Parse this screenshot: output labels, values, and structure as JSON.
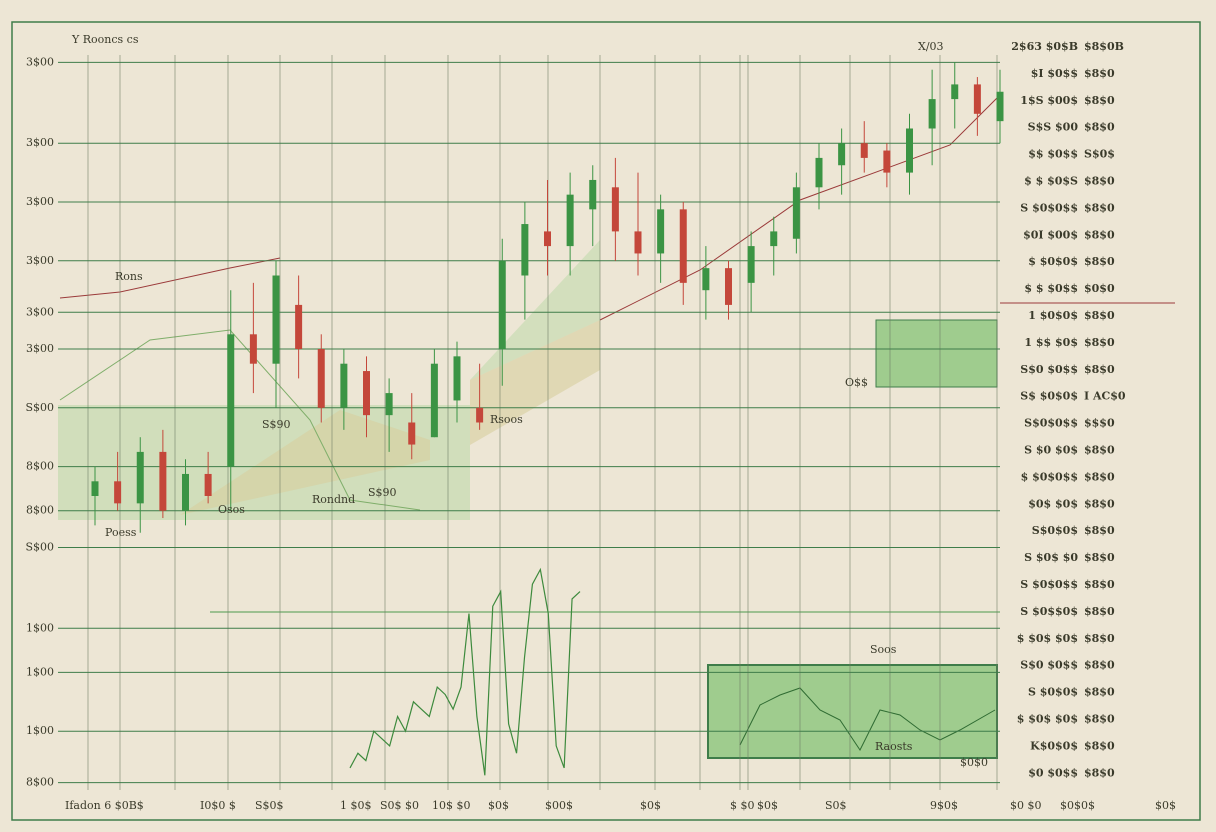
{
  "chart_data": {
    "type": "candlestick",
    "title": "Y Rooncs cs",
    "categories": [
      null,
      null,
      null,
      null,
      null,
      null,
      null,
      null,
      null,
      null,
      null,
      null,
      null,
      null,
      null,
      null,
      null,
      null,
      null,
      null,
      null,
      null,
      null,
      null,
      null,
      null,
      null,
      null,
      null,
      null,
      null,
      null,
      null,
      null,
      null,
      null,
      null,
      null,
      null,
      null,
      null
    ],
    "open": [
      40,
      42,
      39,
      46,
      38,
      43,
      44,
      62,
      58,
      66,
      60,
      52,
      57,
      51,
      50,
      48,
      53,
      52,
      60,
      70,
      76,
      74,
      79,
      82,
      76,
      73,
      79,
      68,
      71,
      69,
      74,
      75,
      82,
      85,
      88,
      87,
      84,
      90,
      94,
      96,
      91
    ],
    "high": [
      44,
      46,
      48,
      49,
      45,
      46,
      68,
      69,
      72,
      70,
      62,
      60,
      59,
      56,
      54,
      60,
      61,
      58,
      75,
      80,
      83,
      84,
      85,
      86,
      84,
      81,
      80,
      74,
      72,
      76,
      78,
      84,
      88,
      90,
      91,
      88,
      92,
      98,
      99,
      97,
      98
    ],
    "low": [
      36,
      38,
      35,
      37,
      36,
      39,
      38,
      54,
      52,
      56,
      50,
      49,
      48,
      46,
      45,
      48,
      50,
      49,
      55,
      64,
      70,
      70,
      74,
      72,
      70,
      69,
      66,
      64,
      64,
      65,
      70,
      73,
      79,
      81,
      84,
      82,
      81,
      85,
      90,
      89,
      88
    ],
    "close": [
      42,
      39,
      46,
      38,
      43,
      40,
      62,
      58,
      70,
      60,
      52,
      58,
      51,
      54,
      47,
      58,
      59,
      50,
      72,
      77,
      74,
      81,
      83,
      76,
      73,
      79,
      69,
      71,
      66,
      74,
      76,
      82,
      86,
      88,
      86,
      84,
      90,
      94,
      96,
      92,
      95
    ],
    "up_color": "#3b9444",
    "down_color": "#c4473a",
    "ylim": [
      0,
      100
    ],
    "yticks": [
      {
        "value": 99,
        "label": "3$00"
      },
      {
        "value": 88,
        "label": "3$00"
      },
      {
        "value": 80,
        "label": "3$00"
      },
      {
        "value": 72,
        "label": "3$00"
      },
      {
        "value": 65,
        "label": "3$00"
      },
      {
        "value": 60,
        "label": "3$00"
      },
      {
        "value": 52,
        "label": "S$00"
      },
      {
        "value": 44,
        "label": "8$00"
      },
      {
        "value": 38,
        "label": "8$00"
      },
      {
        "value": 33,
        "label": "S$00"
      },
      {
        "value": 22,
        "label": "1$00"
      },
      {
        "value": 16,
        "label": "1$00"
      },
      {
        "value": 8,
        "label": "1$00"
      },
      {
        "value": 1,
        "label": "8$00"
      }
    ],
    "grid": true,
    "lower": {
      "type": "line",
      "color": "#3d8a3d",
      "values": [
        3,
        5,
        4,
        8,
        7,
        6,
        10,
        8,
        12,
        11,
        10,
        14,
        13,
        11,
        14,
        24,
        10,
        2,
        25,
        27,
        9,
        5,
        18,
        28,
        30,
        24,
        6,
        3,
        26,
        27
      ]
    },
    "annotations": [
      "X/03",
      "Rons",
      "Rsoos",
      "S$90",
      "Rondnd",
      "Poess",
      "Osos",
      "S$90",
      "Raosts",
      "Soos",
      "O$$",
      "$0$0"
    ],
    "x_labels": [
      "Ifadon 6 $0B$",
      "I0$0 $",
      "S$0$",
      "1 $0$",
      "S0$ $0",
      "10$ $0",
      "$0$",
      "$00$",
      "$0$",
      "$ $0",
      "$0$",
      "S0$",
      "9$0$",
      "$0 $0",
      "$0$0$",
      "$0$"
    ],
    "right_labels": [
      {
        "left": "2$63 $0$B",
        "right": "$8$0B",
        "color": "#3b9444"
      },
      {
        "left": "$I $0$$",
        "right": "$8$0",
        "color": "#3b9444"
      },
      {
        "left": "1$S $00$",
        "right": "$8$0",
        "color": "#3b9444"
      },
      {
        "left": "S$S $00",
        "right": "$8$0",
        "color": "#3b9444"
      },
      {
        "left": "$$ $0$$",
        "right": "S$0$",
        "color": "#3b9444"
      },
      {
        "left": "$ $ $0$S",
        "right": "$8$0",
        "color": "#3b9444"
      },
      {
        "left": "S $0$0$$",
        "right": "$8$0",
        "color": "#c4473a"
      },
      {
        "left": "$0I $00$",
        "right": "$8$0",
        "color": "#3b9444"
      },
      {
        "left": "$ $0$0$",
        "right": "$8$0",
        "color": "#3b9444"
      },
      {
        "left": "$ $ $0$$",
        "right": "$0$0",
        "color": "#3b9444"
      },
      {
        "left": "1 $0$0$",
        "right": "$8$0",
        "color": "#3b9444"
      },
      {
        "left": "1 $$ $0$",
        "right": "$8$0",
        "color": "#c4473a"
      },
      {
        "left": "S$0 $0$$",
        "right": "$8$0",
        "color": "#3b9444"
      },
      {
        "left": "S$ $0$0$",
        "right": "I AC$0",
        "color": "#3b9444"
      },
      {
        "left": "S$0$0$$",
        "right": "$$$0",
        "color": "#c4473a"
      },
      {
        "left": "S $0 $0$",
        "right": "$8$0",
        "color": "#c4473a"
      },
      {
        "left": "$ $0$0$$",
        "right": "$8$0",
        "color": "#3b9444"
      },
      {
        "left": "$0$ $0$",
        "right": "$8$0",
        "color": "#3b9444"
      },
      {
        "left": "S$0$0$",
        "right": "$8$0",
        "color": "#3b9444"
      },
      {
        "left": "S $0$ $0",
        "right": "$8$0",
        "color": "#3b9444"
      },
      {
        "left": "S $0$0$$",
        "right": "$8$0",
        "color": "#3b9444"
      },
      {
        "left": "S $0$$0$",
        "right": "$8$0",
        "color": "#3b9444"
      },
      {
        "left": "$ $0$ $0$",
        "right": "$8$0",
        "color": "#c4473a"
      },
      {
        "left": "S$0 $0$$",
        "right": "$8$0",
        "color": "#3b9444"
      },
      {
        "left": "S $0$0$",
        "right": "$8$0",
        "color": "#c4473a"
      },
      {
        "left": "$ $0$ $0$",
        "right": "$8$0",
        "color": "#c4473a"
      },
      {
        "left": "K$0$0$",
        "right": "$8$0",
        "color": "#3b9444"
      },
      {
        "left": "$0 $0$$",
        "right": "$8$0",
        "color": "#3b9444"
      }
    ]
  }
}
